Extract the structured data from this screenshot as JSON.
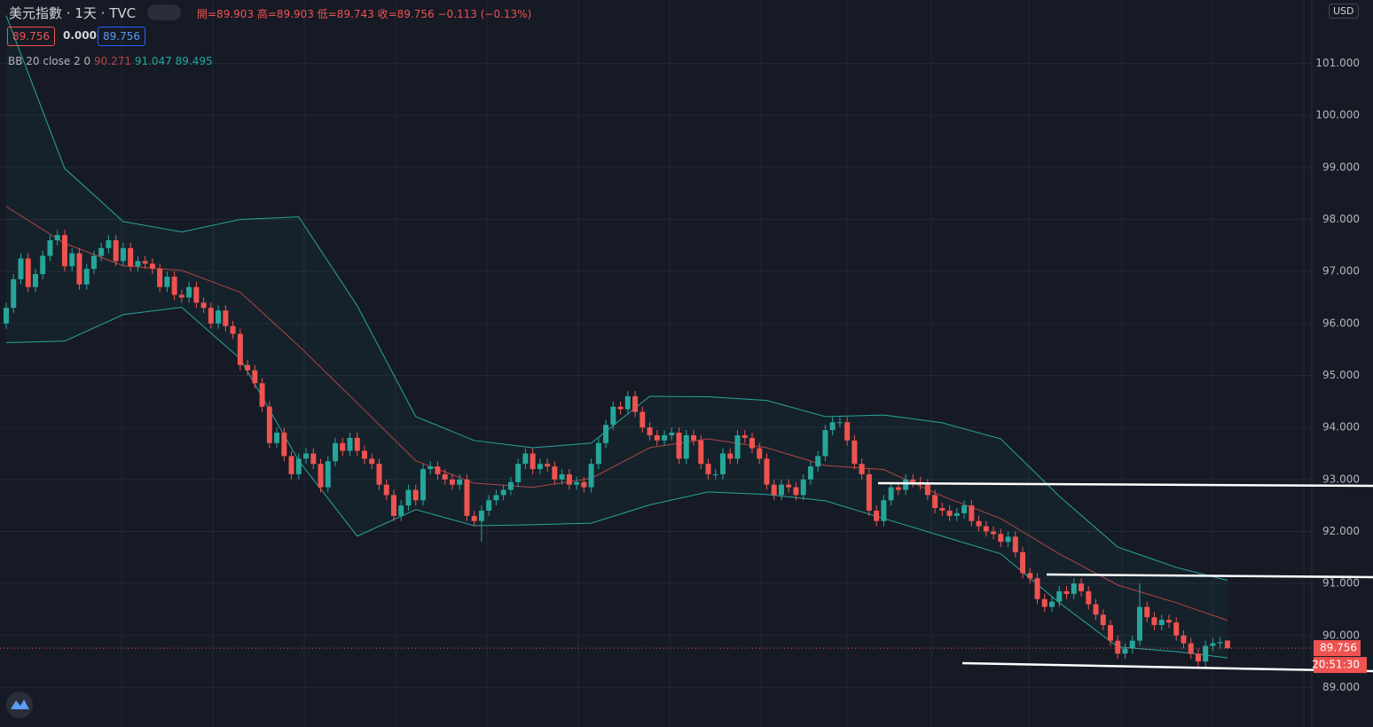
{
  "chart_data": {
    "type": "candlestick",
    "header": {
      "symbol": "美元指數",
      "interval": "1天",
      "source": "TVC",
      "open": "開=89.903",
      "high": "高=89.903",
      "low": "低=89.743",
      "close": "收=89.756",
      "change": "−0.113 (−0.13%)"
    },
    "price_boxes": [
      "89.756",
      "0.000",
      "89.756"
    ],
    "indicator": {
      "name": "BB 20 close 2 0",
      "values": [
        "90.271",
        "91.047",
        "89.495"
      ]
    },
    "currency": "USD",
    "last_price_label": "89.756",
    "countdown": "20:51:30",
    "last_price": 89.756,
    "up_color": "#26a69a",
    "down_color": "#ef5350",
    "ylim": [
      88.24,
      102.22
    ],
    "yticks": [
      {
        "value": 89,
        "label": "89.000"
      },
      {
        "value": 90,
        "label": "90.000"
      },
      {
        "value": 91,
        "label": "91.000"
      },
      {
        "value": 92,
        "label": "92.000"
      },
      {
        "value": 93,
        "label": "93.000"
      },
      {
        "value": 94,
        "label": "94.000"
      },
      {
        "value": 95,
        "label": "95.000"
      },
      {
        "value": 96,
        "label": "96.000"
      },
      {
        "value": 97,
        "label": "97.000"
      },
      {
        "value": 98,
        "label": "98.000"
      },
      {
        "value": 99,
        "label": "99.000"
      },
      {
        "value": 100,
        "label": "100.000"
      },
      {
        "value": 101,
        "label": "101.000"
      }
    ],
    "grid": true,
    "open": [
      96.0,
      96.3,
      96.85,
      97.25,
      96.7,
      96.95,
      97.3,
      97.6,
      97.7,
      97.1,
      97.35,
      96.75,
      97.05,
      97.3,
      97.45,
      97.6,
      97.2,
      97.45,
      97.1,
      97.2,
      97.15,
      97.05,
      96.7,
      96.9,
      96.55,
      96.5,
      96.7,
      96.4,
      96.3,
      96.0,
      96.25,
      95.95,
      95.8,
      95.2,
      95.1,
      94.85,
      94.4,
      93.7,
      93.9,
      93.45,
      93.1,
      93.4,
      93.5,
      93.3,
      92.85,
      93.35,
      93.7,
      93.55,
      93.8,
      93.55,
      93.4,
      93.3,
      92.9,
      92.7,
      92.3,
      92.5,
      92.8,
      92.6,
      93.2,
      93.25,
      93.1,
      93.0,
      92.9,
      93.0,
      92.3,
      92.2,
      92.4,
      92.6,
      92.7,
      92.8,
      92.95,
      93.3,
      93.5,
      93.2,
      93.3,
      93.25,
      93.0,
      93.1,
      92.9,
      92.95,
      92.85,
      93.3,
      93.7,
      94.05,
      94.4,
      94.35,
      94.6,
      94.3,
      94.0,
      93.85,
      93.75,
      93.85,
      93.9,
      93.4,
      93.85,
      93.75,
      93.3,
      93.1,
      93.1,
      93.5,
      93.4,
      93.85,
      93.8,
      93.6,
      93.4,
      92.9,
      92.7,
      92.9,
      92.85,
      92.7,
      93.0,
      93.25,
      93.45,
      93.95,
      94.1,
      94.1,
      93.75,
      93.3,
      93.1,
      92.4,
      92.2,
      92.6,
      92.85,
      92.8,
      93.0,
      92.95,
      92.9,
      92.7,
      92.45,
      92.4,
      92.3,
      92.35,
      92.5,
      92.2,
      92.1,
      92.0,
      91.95,
      91.8,
      91.9,
      91.6,
      91.2,
      91.1,
      90.7,
      90.55,
      90.65,
      90.85,
      90.8,
      91.0,
      90.85,
      90.6,
      90.4,
      90.2,
      89.9,
      89.65,
      89.75,
      89.9,
      90.55,
      90.35,
      90.2,
      90.3,
      90.25,
      90.0,
      89.85,
      89.65,
      89.5,
      89.8,
      89.85,
      89.903
    ],
    "high": [
      96.4,
      96.95,
      97.35,
      97.35,
      97.05,
      97.4,
      97.7,
      97.8,
      97.8,
      97.45,
      97.45,
      97.15,
      97.4,
      97.55,
      97.7,
      97.7,
      97.55,
      97.55,
      97.3,
      97.3,
      97.25,
      97.15,
      97.0,
      97.0,
      96.65,
      96.8,
      96.8,
      96.5,
      96.4,
      96.35,
      96.35,
      96.05,
      95.9,
      95.3,
      95.2,
      94.95,
      94.5,
      94.0,
      94.0,
      93.55,
      93.5,
      93.6,
      93.6,
      93.4,
      93.45,
      93.8,
      93.8,
      93.9,
      93.9,
      93.65,
      93.5,
      93.4,
      93.0,
      92.8,
      92.6,
      92.9,
      92.9,
      93.3,
      93.35,
      93.35,
      93.2,
      93.1,
      93.1,
      93.1,
      92.4,
      92.5,
      92.7,
      92.8,
      92.9,
      93.05,
      93.4,
      93.6,
      93.6,
      93.4,
      93.4,
      93.35,
      93.2,
      93.2,
      93.05,
      93.05,
      93.4,
      93.8,
      94.15,
      94.5,
      94.5,
      94.7,
      94.7,
      94.4,
      94.1,
      93.95,
      93.95,
      94.0,
      94.0,
      93.95,
      93.95,
      93.85,
      93.4,
      93.2,
      93.6,
      93.6,
      93.95,
      93.95,
      93.9,
      93.7,
      93.5,
      93.0,
      93.0,
      93.0,
      92.95,
      93.1,
      93.35,
      93.55,
      94.05,
      94.2,
      94.2,
      94.2,
      93.85,
      93.4,
      93.2,
      92.5,
      92.7,
      92.95,
      92.95,
      93.1,
      93.1,
      93.05,
      93.0,
      92.8,
      92.55,
      92.5,
      92.45,
      92.6,
      92.6,
      92.3,
      92.2,
      92.1,
      92.05,
      92.0,
      92.0,
      91.7,
      91.3,
      91.2,
      90.8,
      90.75,
      90.95,
      90.95,
      91.1,
      91.1,
      90.95,
      90.7,
      90.5,
      90.3,
      90.0,
      89.85,
      90.0,
      91.0,
      90.65,
      90.45,
      90.4,
      90.4,
      90.35,
      90.1,
      89.95,
      89.75,
      89.9,
      89.95,
      89.97,
      89.903
    ],
    "low": [
      95.9,
      96.2,
      96.75,
      96.6,
      96.6,
      96.85,
      97.2,
      97.5,
      97.0,
      97.0,
      96.65,
      96.65,
      96.95,
      97.2,
      97.35,
      97.1,
      97.1,
      97.0,
      97.0,
      97.05,
      96.95,
      96.6,
      96.6,
      96.45,
      96.4,
      96.4,
      96.3,
      96.2,
      95.9,
      95.9,
      95.85,
      95.7,
      95.1,
      95.0,
      94.75,
      94.3,
      93.6,
      93.6,
      93.35,
      93.0,
      93.0,
      93.3,
      93.2,
      92.75,
      92.75,
      93.25,
      93.45,
      93.45,
      93.45,
      93.3,
      93.2,
      92.8,
      92.6,
      92.2,
      92.2,
      92.4,
      92.5,
      92.5,
      93.1,
      93.0,
      92.9,
      92.8,
      92.8,
      92.2,
      92.1,
      91.8,
      92.3,
      92.5,
      92.6,
      92.7,
      92.85,
      93.2,
      93.1,
      93.1,
      93.15,
      92.9,
      92.9,
      92.8,
      92.8,
      92.75,
      92.75,
      93.2,
      93.6,
      93.95,
      94.25,
      94.25,
      94.2,
      93.9,
      93.75,
      93.65,
      93.65,
      93.75,
      93.3,
      93.3,
      93.65,
      93.2,
      93.0,
      93.0,
      93.0,
      93.3,
      93.3,
      93.7,
      93.5,
      93.3,
      92.8,
      92.6,
      92.6,
      92.75,
      92.6,
      92.6,
      92.9,
      93.15,
      93.35,
      93.85,
      94.0,
      93.65,
      93.2,
      93.0,
      92.3,
      92.1,
      92.1,
      92.5,
      92.7,
      92.7,
      92.85,
      92.8,
      92.6,
      92.35,
      92.3,
      92.2,
      92.2,
      92.25,
      92.1,
      92.0,
      91.9,
      91.85,
      91.7,
      91.7,
      91.5,
      91.1,
      91.0,
      90.6,
      90.45,
      90.45,
      90.55,
      90.7,
      90.7,
      90.75,
      90.5,
      90.3,
      90.1,
      89.8,
      89.55,
      89.55,
      89.65,
      89.8,
      90.25,
      90.1,
      90.1,
      90.15,
      89.9,
      89.75,
      89.55,
      89.4,
      89.4,
      89.7,
      89.75,
      89.743
    ],
    "close": [
      96.3,
      96.85,
      97.25,
      96.7,
      96.95,
      97.3,
      97.6,
      97.7,
      97.1,
      97.35,
      96.75,
      97.05,
      97.3,
      97.45,
      97.6,
      97.2,
      97.45,
      97.1,
      97.2,
      97.15,
      97.05,
      96.7,
      96.9,
      96.55,
      96.5,
      96.7,
      96.4,
      96.3,
      96.0,
      96.25,
      95.95,
      95.8,
      95.2,
      95.1,
      94.85,
      94.4,
      93.7,
      93.9,
      93.45,
      93.1,
      93.4,
      93.5,
      93.3,
      92.85,
      93.35,
      93.7,
      93.55,
      93.8,
      93.55,
      93.4,
      93.3,
      92.9,
      92.7,
      92.3,
      92.5,
      92.8,
      92.6,
      93.2,
      93.25,
      93.1,
      93.0,
      92.9,
      93.0,
      92.3,
      92.2,
      92.4,
      92.6,
      92.7,
      92.8,
      92.95,
      93.3,
      93.5,
      93.2,
      93.3,
      93.25,
      93.0,
      93.1,
      92.9,
      92.95,
      92.85,
      93.3,
      93.7,
      94.05,
      94.4,
      94.35,
      94.6,
      94.3,
      94.0,
      93.85,
      93.75,
      93.85,
      93.9,
      93.4,
      93.85,
      93.75,
      93.3,
      93.1,
      93.1,
      93.5,
      93.4,
      93.85,
      93.8,
      93.6,
      93.4,
      92.9,
      92.7,
      92.9,
      92.85,
      92.7,
      93.0,
      93.25,
      93.45,
      93.95,
      94.1,
      94.1,
      93.75,
      93.3,
      93.1,
      92.4,
      92.2,
      92.6,
      92.85,
      92.8,
      93.0,
      92.95,
      92.9,
      92.7,
      92.45,
      92.4,
      92.3,
      92.35,
      92.5,
      92.2,
      92.1,
      92.0,
      91.95,
      91.8,
      91.9,
      91.6,
      91.2,
      91.1,
      90.7,
      90.55,
      90.65,
      90.85,
      90.8,
      91.0,
      90.85,
      90.6,
      90.4,
      90.2,
      89.9,
      89.65,
      89.75,
      89.9,
      90.55,
      90.35,
      90.2,
      90.3,
      90.25,
      90.0,
      89.85,
      89.65,
      89.5,
      89.8,
      89.85,
      89.87,
      89.756
    ],
    "bands": [
      {
        "name": "upper",
        "color": "#26a69a",
        "x": [
          0,
          8,
          16,
          24,
          32,
          40,
          48,
          56,
          64,
          72,
          80,
          88,
          96,
          104,
          112,
          120,
          128,
          136,
          144,
          152,
          160,
          167
        ],
        "values": [
          101.92,
          98.98,
          97.96,
          97.76,
          98.0,
          98.05,
          96.34,
          94.21,
          93.75,
          93.61,
          93.7,
          94.6,
          94.59,
          94.52,
          94.21,
          94.24,
          94.09,
          93.78,
          92.68,
          91.7,
          91.31,
          91.06
        ]
      },
      {
        "name": "basis",
        "color": "#b04545",
        "x": [
          0,
          8,
          16,
          24,
          32,
          40,
          48,
          56,
          64,
          72,
          80,
          88,
          96,
          104,
          112,
          120,
          128,
          136,
          144,
          152,
          160,
          167
        ],
        "values": [
          98.25,
          97.54,
          97.11,
          97.02,
          96.6,
          95.57,
          94.47,
          93.36,
          92.93,
          92.85,
          93.02,
          93.61,
          93.78,
          93.61,
          93.27,
          93.19,
          92.68,
          92.25,
          91.57,
          90.97,
          90.63,
          90.29
        ]
      },
      {
        "name": "lower",
        "color": "#26a69a",
        "x": [
          0,
          8,
          16,
          24,
          32,
          40,
          48,
          56,
          64,
          72,
          80,
          88,
          96,
          104,
          112,
          120,
          128,
          136,
          144,
          152,
          160,
          167
        ],
        "values": [
          95.63,
          95.66,
          96.17,
          96.31,
          95.32,
          93.36,
          91.91,
          92.42,
          92.11,
          92.13,
          92.16,
          92.51,
          92.76,
          92.71,
          92.59,
          92.25,
          91.91,
          91.57,
          90.63,
          89.78,
          89.69,
          89.57
        ]
      }
    ]
  }
}
